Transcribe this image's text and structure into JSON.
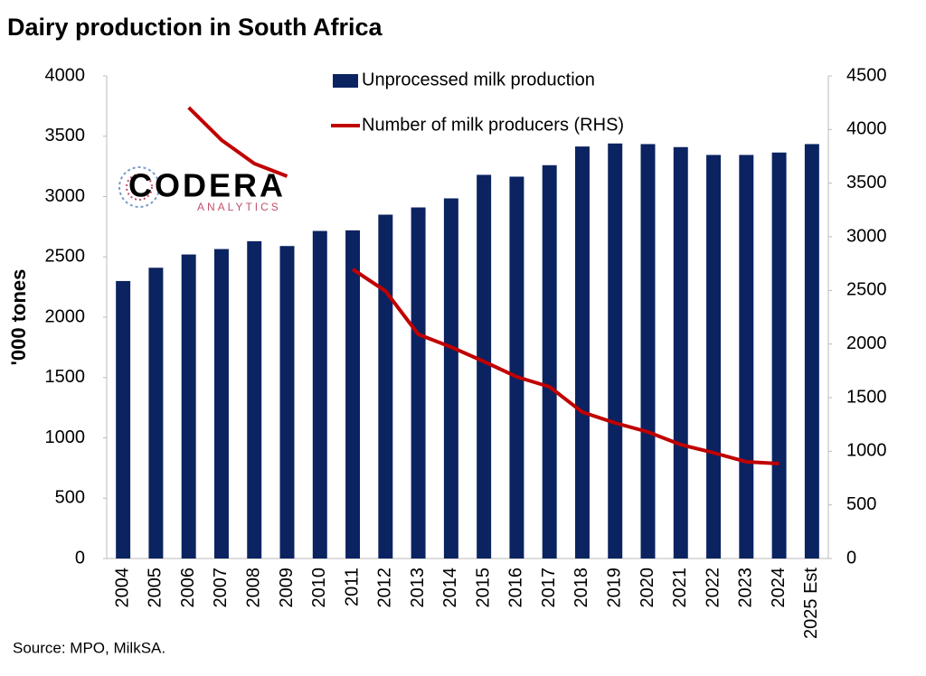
{
  "chart_data": {
    "type": "bar",
    "title": "Dairy production in South Africa",
    "y_label": "'000 tones",
    "source": "Source: MPO, MilkSA.",
    "categories": [
      "2004",
      "2005",
      "2006",
      "2007",
      "2008",
      "2009",
      "2010",
      "2011",
      "2012",
      "2013",
      "2014",
      "2015",
      "2016",
      "2017",
      "2018",
      "2019",
      "2020",
      "2021",
      "2022",
      "2023",
      "2024",
      "2025 Est"
    ],
    "series": [
      {
        "name": "Unprocessed milk production",
        "type": "bar",
        "color": "#0b2361",
        "axis": "y",
        "values": [
          2300,
          2410,
          2520,
          2565,
          2630,
          2590,
          2715,
          2720,
          2850,
          2910,
          2985,
          3180,
          3165,
          3260,
          3415,
          3440,
          3435,
          3410,
          3345,
          3345,
          3365,
          3435
        ]
      },
      {
        "name": "Number of milk producers (RHS)",
        "type": "line",
        "color": "#c00000",
        "axis": "y2",
        "values": [
          null,
          null,
          4205,
          3902,
          3683,
          3565,
          null,
          2697,
          2494,
          2090,
          1972,
          1837,
          1694,
          1601,
          1365,
          1264,
          1180,
          1062,
          986,
          902,
          885,
          null
        ]
      }
    ],
    "ylim": [
      0,
      4000
    ],
    "yticks": [
      0,
      500,
      1000,
      1500,
      2000,
      2500,
      3000,
      3500,
      4000
    ],
    "y2lim": [
      0,
      4500
    ],
    "y2ticks": [
      0,
      500,
      1000,
      1500,
      2000,
      2500,
      3000,
      3500,
      4000,
      4500
    ],
    "grid": false
  },
  "logo": {
    "name": "CODERA",
    "tagline": "ANALYTICS"
  }
}
